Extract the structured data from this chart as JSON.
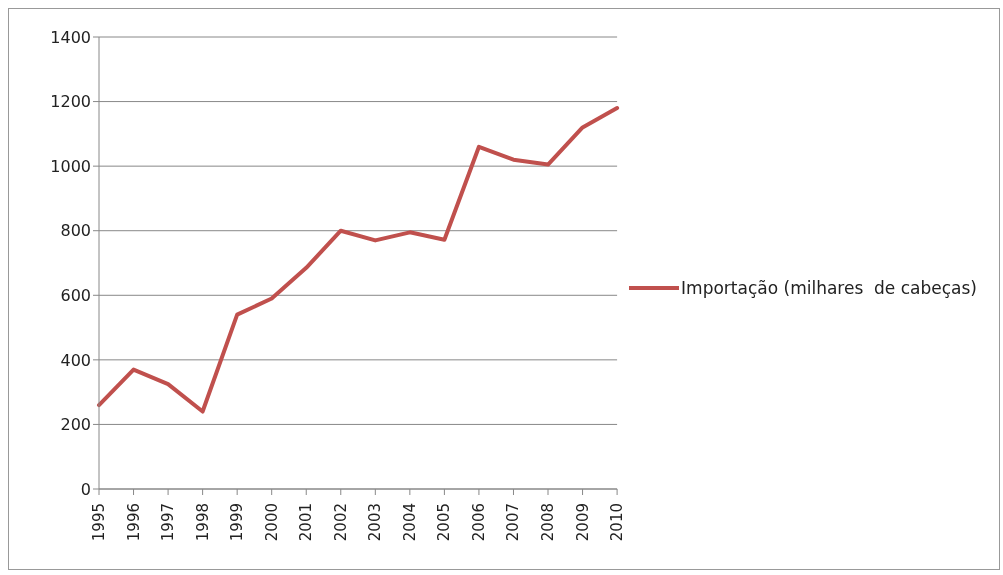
{
  "chart_data": {
    "type": "line",
    "categories": [
      "1995",
      "1996",
      "1997",
      "1998",
      "1999",
      "2000",
      "2001",
      "2002",
      "2003",
      "2004",
      "2005",
      "2006",
      "2007",
      "2008",
      "2009",
      "2010"
    ],
    "series": [
      {
        "name": "Importação (milhares  de cabeças)",
        "color": "#c0504d",
        "values": [
          260,
          370,
          325,
          240,
          540,
          590,
          685,
          800,
          770,
          795,
          772,
          1060,
          1020,
          1005,
          1120,
          1180
        ]
      }
    ],
    "ylim": [
      0,
      1400
    ],
    "yticks": [
      0,
      200,
      400,
      600,
      800,
      1000,
      1200,
      1400
    ],
    "grid": "y",
    "legend": "right",
    "marker": "none",
    "line_style": "solid"
  }
}
